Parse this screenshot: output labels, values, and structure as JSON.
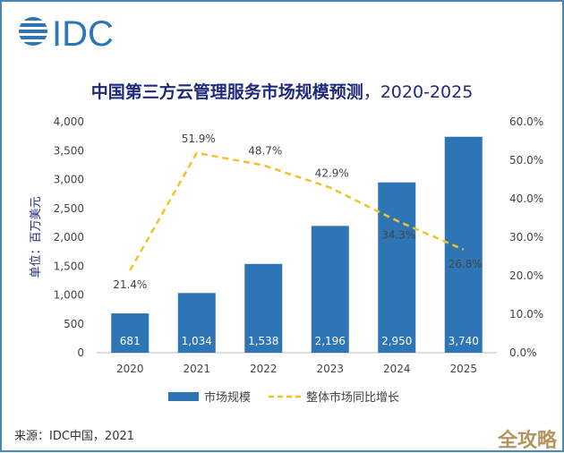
{
  "logo_text": "IDC",
  "title": "中国第三方云管理服务市场规模预测",
  "title_years": "，2020-2025",
  "source": "来源：IDC中国，2021",
  "watermark": "全攻略",
  "colors": {
    "bar": "#2e75b6",
    "line": "#f2c12e",
    "title": "#1f2a7a",
    "frame": "#4a86b4"
  },
  "chart_data": {
    "type": "bar+line",
    "categories": [
      "2020",
      "2021",
      "2022",
      "2023",
      "2024",
      "2025"
    ],
    "series": [
      {
        "name": "市场规模",
        "type": "bar",
        "axis": "left",
        "values": [
          681,
          1034,
          1538,
          2196,
          2950,
          3740
        ],
        "labels": [
          "681",
          "1,034",
          "1,538",
          "2,196",
          "2,950",
          "3,740"
        ]
      },
      {
        "name": "整体市场同比增长",
        "type": "line",
        "style": "dashed",
        "axis": "right",
        "values": [
          21.4,
          51.9,
          48.7,
          42.9,
          34.3,
          26.8
        ],
        "labels": [
          "21.4%",
          "51.9%",
          "48.7%",
          "42.9%",
          "34.3%",
          "26.8%"
        ]
      }
    ],
    "ylabel": "单位：百万美元",
    "ylim": [
      0,
      4000
    ],
    "yticks": [
      "0",
      "500",
      "1,000",
      "1,500",
      "2,000",
      "2,500",
      "3,000",
      "3,500",
      "4,000"
    ],
    "y2lim": [
      0,
      60
    ],
    "y2ticks": [
      "0.0%",
      "10.0%",
      "20.0%",
      "30.0%",
      "40.0%",
      "50.0%",
      "60.0%"
    ],
    "legend": "bottom",
    "grid": false
  }
}
